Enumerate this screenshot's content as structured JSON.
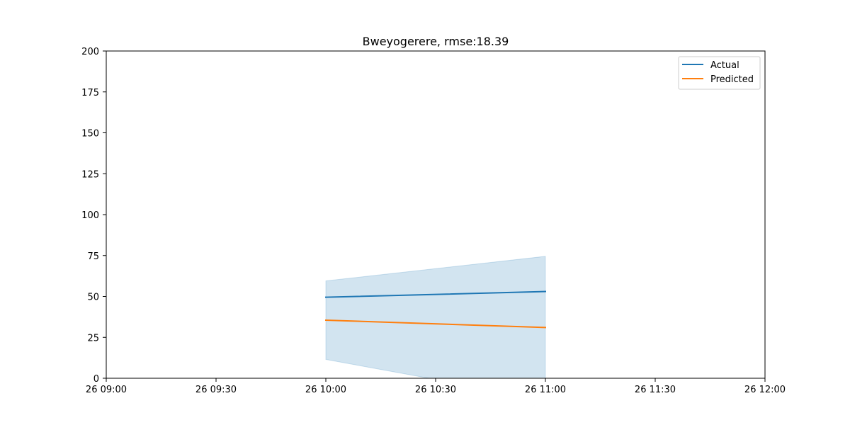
{
  "chart_data": {
    "type": "line",
    "title": "Bweyogerere, rmse:18.39",
    "xlabel": "",
    "ylabel": "",
    "x_ticks": [
      "26 09:00",
      "26 09:30",
      "26 10:00",
      "26 10:30",
      "26 11:00",
      "26 11:30",
      "26 12:00"
    ],
    "xlim": [
      "26 09:00",
      "26 12:00"
    ],
    "ylim": [
      0,
      200
    ],
    "y_ticks": [
      0,
      25,
      50,
      75,
      100,
      125,
      150,
      175,
      200
    ],
    "grid": false,
    "legend": "top-right",
    "x": [
      "26 10:00",
      "26 11:00"
    ],
    "series": [
      {
        "name": "Actual",
        "color": "#1f77b4",
        "values": [
          49.5,
          53
        ]
      },
      {
        "name": "Predicted",
        "color": "#ff7f0e",
        "values": [
          35.5,
          31
        ]
      }
    ],
    "confidence_band": {
      "color": "#1f77b4",
      "x": [
        "26 10:00",
        "26 11:00"
      ],
      "lower": [
        11.5,
        -13
      ],
      "upper": [
        59.5,
        74.5
      ]
    }
  }
}
